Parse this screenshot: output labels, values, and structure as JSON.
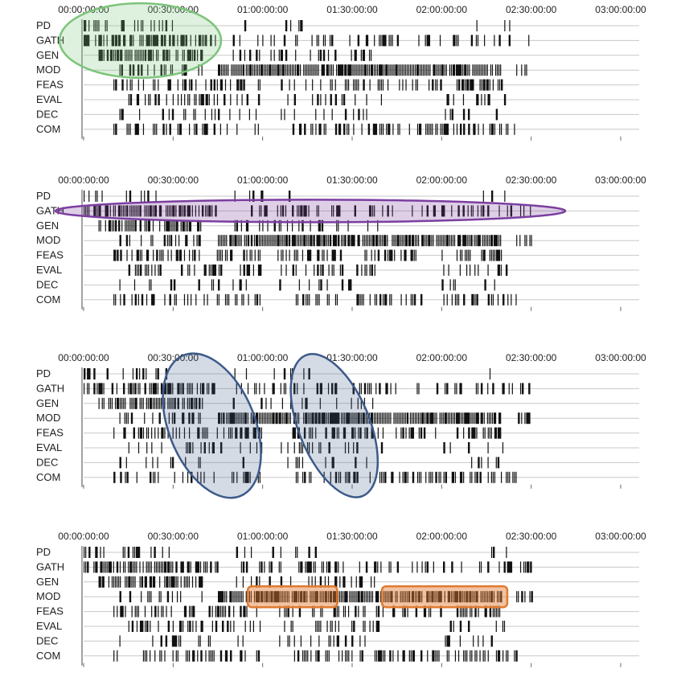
{
  "chart_data": [
    {
      "type": "timeline",
      "time_ticks": [
        "00:00:00:00",
        "00:30:00:00",
        "01:00:00:00",
        "01:30:00:00",
        "02:00:00:00",
        "02:30:00:00",
        "03:00:00:00"
      ],
      "x_range_minutes": [
        0,
        180
      ],
      "rows": [
        "PD",
        "GATH",
        "GEN",
        "MOD",
        "FEAS",
        "EVAL",
        "DEC",
        "COM"
      ],
      "highlight": {
        "shape": "ellipse",
        "color": "#7cc47a",
        "rows": [
          "PD",
          "GATH",
          "GEN"
        ],
        "time_range_minutes": [
          0,
          38
        ]
      }
    },
    {
      "type": "timeline",
      "time_ticks": [
        "00:00:00:00",
        "00:30:00:00",
        "01:00:00:00",
        "01:30:00:00",
        "02:00:00:00",
        "02:30:00:00",
        "03:00:00:00"
      ],
      "x_range_minutes": [
        0,
        180
      ],
      "rows": [
        "PD",
        "GATH",
        "GEN",
        "MOD",
        "FEAS",
        "EVAL",
        "DEC",
        "COM"
      ],
      "highlight": {
        "shape": "ellipse",
        "color": "#7b3fa0",
        "rows": [
          "GATH"
        ],
        "time_range_minutes": [
          0,
          152
        ]
      }
    },
    {
      "type": "timeline",
      "time_ticks": [
        "00:00:00:00",
        "00:30:00:00",
        "01:00:00:00",
        "01:30:00:00",
        "02:00:00:00",
        "02:30:00:00",
        "03:00:00:00"
      ],
      "x_range_minutes": [
        0,
        180
      ],
      "rows": [
        "PD",
        "GATH",
        "GEN",
        "MOD",
        "FEAS",
        "EVAL",
        "DEC",
        "COM"
      ],
      "highlight": {
        "shape": "ellipse",
        "color": "#3d5a8a",
        "rows": [
          "PD",
          "GATH",
          "GEN",
          "MOD",
          "FEAS",
          "EVAL",
          "DEC",
          "COM"
        ],
        "time_range_minutes": [
          [
            26,
            60
          ],
          [
            70,
            98
          ]
        ]
      }
    },
    {
      "type": "timeline",
      "time_ticks": [
        "00:00:00:00",
        "00:30:00:00",
        "01:00:00:00",
        "01:30:00:00",
        "02:00:00:00",
        "02:30:00:00",
        "03:00:00:00"
      ],
      "x_range_minutes": [
        0,
        180
      ],
      "rows": [
        "PD",
        "GATH",
        "GEN",
        "MOD",
        "FEAS",
        "EVAL",
        "DEC",
        "COM"
      ],
      "highlight": {
        "shape": "rounded-rect",
        "color": "#e07b30",
        "rows": [
          "MOD"
        ],
        "time_range_minutes": [
          [
            55,
            85
          ],
          [
            100,
            142
          ]
        ]
      }
    }
  ],
  "colors": {
    "mark": "#111111",
    "gridline": "#c8c8c8",
    "axis": "#666666"
  }
}
